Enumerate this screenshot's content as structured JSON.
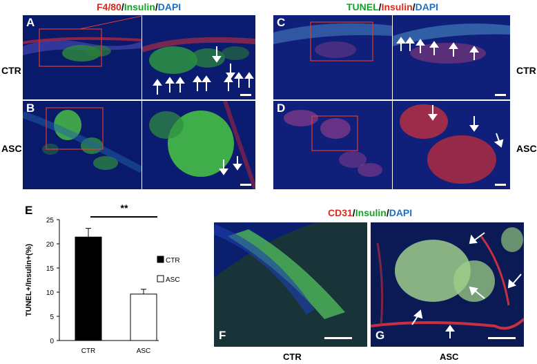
{
  "stains": {
    "top_left": {
      "s1": "F4/80",
      "s2": "Insulin",
      "s3": "DAPI"
    },
    "top_right": {
      "s1": "TUNEL",
      "s2": "Insulin",
      "s3": "DAPI"
    },
    "bottom": {
      "s1": "CD31",
      "s2": "Insulin",
      "s3": "DAPI"
    }
  },
  "panels": {
    "A": "A",
    "B": "B",
    "C": "C",
    "D": "D",
    "E": "E",
    "F": "F",
    "G": "G"
  },
  "row_labels": {
    "ctr_left": "CTR",
    "asc_left": "ASC",
    "ctr_right": "CTR",
    "asc_right": "ASC",
    "ctr_bottom": "CTR",
    "asc_bottom": "ASC"
  },
  "significance": "**",
  "colors": {
    "red": "#d62a1e",
    "green": "#17a02b",
    "blue": "#1f6fbf"
  },
  "chart_data": {
    "type": "bar",
    "categories": [
      "CTR",
      "ASC"
    ],
    "values": [
      21.4,
      9.6
    ],
    "errors": [
      1.8,
      1.0
    ],
    "ylabel": "TUNEL+/Insulin+(%)",
    "ylim": [
      0,
      25
    ],
    "yticks": [
      0,
      5,
      10,
      15,
      20,
      25
    ],
    "legend": [
      "CTR",
      "ASC"
    ],
    "legend_position": "right",
    "bar_colors": [
      "#000000",
      "#ffffff"
    ]
  }
}
